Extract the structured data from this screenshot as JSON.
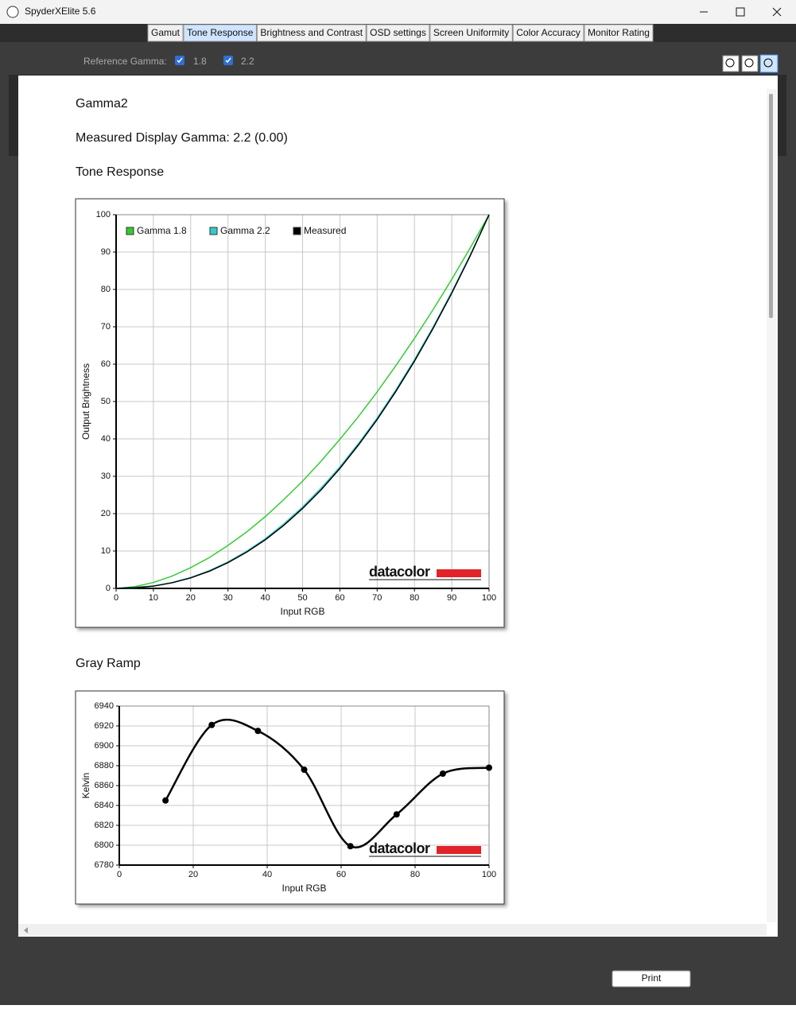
{
  "window": {
    "title": "SpyderXElite 5.6"
  },
  "tabs": [
    "Gamut",
    "Tone Response",
    "Brightness and Contrast",
    "OSD settings",
    "Screen Uniformity",
    "Color Accuracy",
    "Monitor Rating"
  ],
  "toolbar": {
    "label": "Reference Gamma:",
    "options": [
      "1.8",
      "2.2"
    ]
  },
  "report": {
    "heading": "Gamma2",
    "measured": "Measured Display Gamma: 2.2 (0.00)",
    "sections": [
      "Tone Response",
      "Gray Ramp"
    ]
  },
  "chart_data": [
    {
      "type": "line",
      "ylabel": "Output Brightness",
      "xlabel": "Input RGB",
      "watermark": "datacolor",
      "x": [
        0,
        5,
        10,
        15,
        20,
        25,
        30,
        35,
        40,
        45,
        50,
        55,
        60,
        65,
        70,
        75,
        80,
        85,
        90,
        95,
        100
      ],
      "series": [
        {
          "name": "Gamma 1.8",
          "color": "#33cc33",
          "values": [
            0,
            0.46,
            1.58,
            3.29,
            5.54,
            8.25,
            11.5,
            15.1,
            19.2,
            23.8,
            28.7,
            34.1,
            39.9,
            46.0,
            52.6,
            59.6,
            66.9,
            74.6,
            82.7,
            91.2,
            100
          ]
        },
        {
          "name": "Gamma 2.2",
          "color": "#33cccc",
          "values": [
            0,
            0.14,
            0.63,
            1.54,
            2.9,
            4.74,
            7.07,
            9.93,
            13.3,
            17.3,
            21.8,
            26.9,
            32.5,
            38.8,
            45.6,
            53.1,
            61.2,
            69.9,
            79.3,
            89.3,
            100
          ]
        },
        {
          "name": "Measured",
          "color": "#000000",
          "values": [
            0,
            0.2,
            0.6,
            1.5,
            2.8,
            4.6,
            6.9,
            9.7,
            13.0,
            16.9,
            21.4,
            26.4,
            32.1,
            38.4,
            45.2,
            52.7,
            60.8,
            69.6,
            79.0,
            89.1,
            100
          ]
        }
      ],
      "xlim": [
        0,
        100
      ],
      "ylim": [
        0,
        100
      ],
      "xticks": [
        0,
        10,
        20,
        30,
        40,
        50,
        60,
        70,
        80,
        90,
        100
      ],
      "yticks": [
        0,
        10,
        20,
        30,
        40,
        50,
        60,
        70,
        80,
        90,
        100
      ],
      "grid": true,
      "legend": "top-left"
    },
    {
      "type": "spline",
      "ylabel": "Kelvin",
      "xlabel": "Input RGB",
      "watermark": "datacolor",
      "x": [
        12.5,
        25,
        37.5,
        50,
        62.5,
        75,
        87.5,
        100
      ],
      "series": [
        {
          "color": "#000000",
          "values": [
            6845,
            6921,
            6915,
            6876,
            6799,
            6831,
            6872,
            6878
          ]
        }
      ],
      "xlim": [
        0,
        100
      ],
      "ylim": [
        6780,
        6940
      ],
      "xticks": [
        0,
        20,
        40,
        60,
        80,
        100
      ],
      "yticks": [
        6780,
        6800,
        6820,
        6840,
        6860,
        6880,
        6900,
        6920,
        6940
      ],
      "grid": true,
      "markers": true
    }
  ],
  "footer": {
    "button": "Print"
  }
}
